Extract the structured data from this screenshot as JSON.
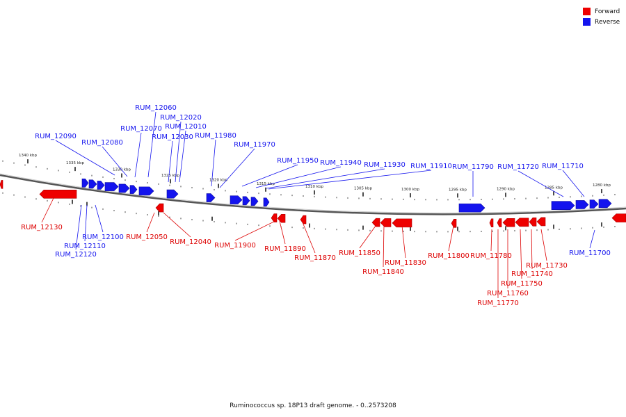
{
  "legend": {
    "forward_label": "Forward",
    "reverse_label": "Reverse",
    "forward_color": "#ee0000",
    "reverse_color": "#1414ee"
  },
  "caption": "Ruminococcus sp. 18P13 draft genome. - 0..2573208",
  "ticks_upper": [
    "1340 kbp",
    "1335 kbp",
    "1330 kbp",
    "1325 kbp",
    "1320 kbp",
    "1315 kbp",
    "1310 kbp"
  ],
  "ticks_lower": [
    "1305 kbp",
    "1300 kbp",
    "1295 kbp",
    "1290 kbp",
    "1285 kbp",
    "1280 kbp"
  ],
  "reverse_labels": [
    "RUM_12060",
    "RUM_12020",
    "RUM_12010",
    "RUM_12070",
    "RUM_12030",
    "RUM_12090",
    "RUM_12080",
    "RUM_11980",
    "RUM_11970",
    "RUM_11950",
    "RUM_11940",
    "RUM_11930",
    "RUM_11910",
    "RUM_11790",
    "RUM_11720",
    "RUM_11710",
    "RUM_12100",
    "RUM_12110",
    "RUM_12120",
    "RUM_11700"
  ],
  "forward_labels": [
    "RUM_12130",
    "RUM_12050",
    "RUM_12040",
    "RUM_11900",
    "RUM_11890",
    "RUM_11870",
    "RUM_11850",
    "RUM_11840",
    "RUM_11830",
    "RUM_11800",
    "RUM_11780",
    "RUM_11770",
    "RUM_11760",
    "RUM_11750",
    "RUM_11740",
    "RUM_11730"
  ]
}
